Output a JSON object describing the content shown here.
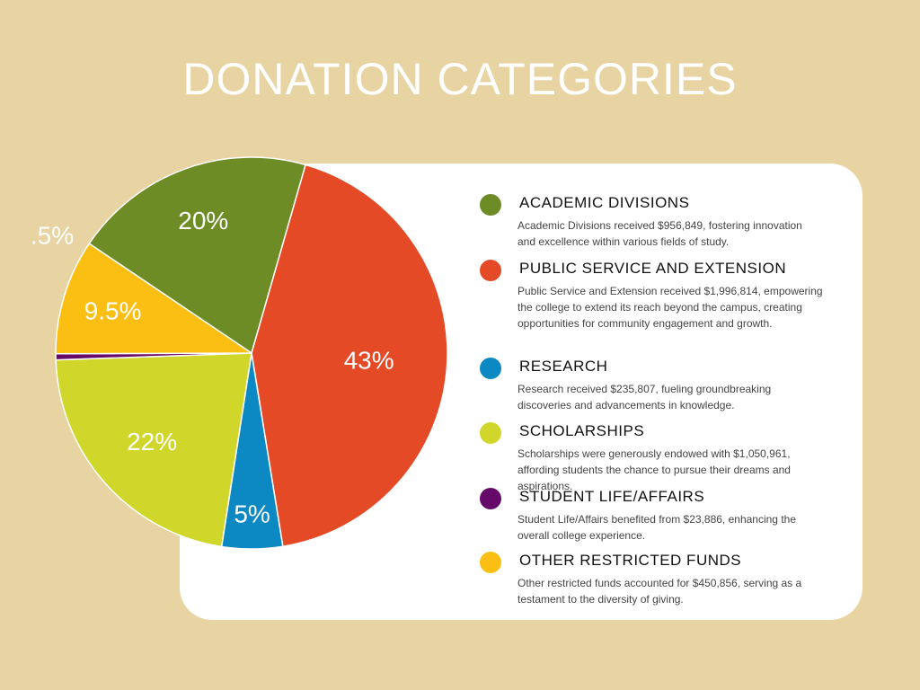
{
  "title": "DONATION CATEGORIES",
  "chart_data": {
    "type": "pie",
    "slices": [
      {
        "name": "ACADEMIC DIVISIONS",
        "value": 20,
        "label": "20%",
        "color": "#6e8c26",
        "description": "Academic Divisions received $956,849, fostering innovation and excellence within various fields of study."
      },
      {
        "name": "PUBLIC SERVICE AND EXTENSION",
        "value": 43,
        "label": "43%",
        "color": "#e54a26",
        "description": "Public Service and Extension received $1,996,814, empowering the college to extend its reach beyond the campus, creating opportunities for community engagement and growth."
      },
      {
        "name": "RESEARCH",
        "value": 5,
        "label": "5%",
        "color": "#0c88c3",
        "description": "Research received $235,807, fueling groundbreaking discoveries and advancements in knowledge."
      },
      {
        "name": "SCHOLARSHIPS",
        "value": 22,
        "label": "22%",
        "color": "#d0d72a",
        "description": "Scholarships were generously endowed with $1,050,961, affording students the chance to pursue their dreams and aspirations."
      },
      {
        "name": "STUDENT LIFE/AFFAIRS",
        "value": 0.5,
        "label": ".5%",
        "color": "#660a6a",
        "description": "Student Life/Affairs benefited from $23,886, enhancing the overall college experience."
      },
      {
        "name": "OTHER RESTRICTED FUNDS",
        "value": 9.5,
        "label": "9.5%",
        "color": "#fbbf13",
        "description": "Other restricted funds accounted for $450,856, serving as a testament to the diversity of giving."
      }
    ]
  }
}
